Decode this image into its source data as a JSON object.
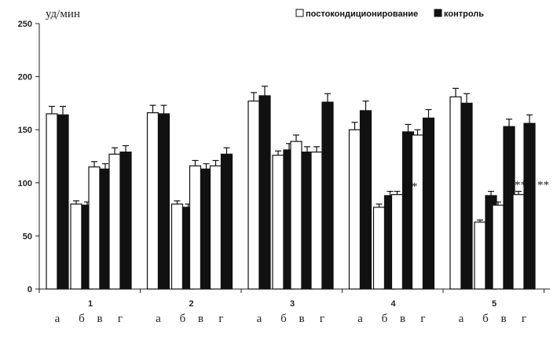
{
  "chart_data": {
    "type": "bar",
    "ylabel": "уд/мин",
    "ylim": [
      0,
      250
    ],
    "yticks": [
      0,
      50,
      100,
      150,
      200,
      250
    ],
    "grid": false,
    "legend_position": "top-right",
    "groups": [
      "1",
      "2",
      "3",
      "4",
      "5"
    ],
    "subcategories": [
      "а",
      "б",
      "в",
      "г"
    ],
    "series": [
      {
        "name": "постокондиционирование",
        "color": "#ffffff",
        "values": [
          [
            165,
            80,
            115,
            127
          ],
          [
            166,
            80,
            116,
            116
          ],
          [
            177,
            126,
            139,
            129
          ],
          [
            150,
            77,
            89,
            145
          ],
          [
            181,
            63,
            79,
            89
          ]
        ],
        "errors": [
          [
            7,
            3,
            5,
            6
          ],
          [
            7,
            3,
            5,
            5
          ],
          [
            8,
            4,
            6,
            5
          ],
          [
            7,
            3,
            3,
            5
          ],
          [
            8,
            2,
            3,
            3
          ]
        ]
      },
      {
        "name": "контроль",
        "color": "#111111",
        "values": [
          [
            164,
            79,
            113,
            129
          ],
          [
            165,
            77,
            113,
            127
          ],
          [
            182,
            131,
            129,
            176
          ],
          [
            168,
            88,
            148,
            161
          ],
          [
            175,
            88,
            153,
            156
          ]
        ],
        "errors": [
          [
            8,
            3,
            5,
            6
          ],
          [
            8,
            3,
            5,
            6
          ],
          [
            9,
            6,
            5,
            8
          ],
          [
            9,
            4,
            7,
            8
          ],
          [
            9,
            4,
            7,
            8
          ]
        ]
      }
    ],
    "annotations": [
      {
        "group": 3,
        "sub": 2,
        "text": "*"
      },
      {
        "group": 4,
        "sub": 3,
        "text": "**"
      },
      {
        "group": 4,
        "sub": 3,
        "text": "**"
      }
    ]
  }
}
